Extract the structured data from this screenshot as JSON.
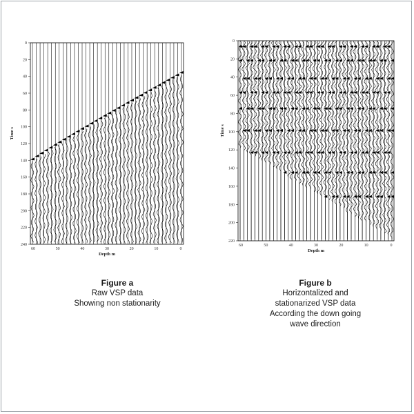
{
  "figure_a": {
    "title": "Figure a",
    "caption_lines": [
      "Raw VSP data",
      "Showing non stationarity"
    ],
    "y_axis_label": "Time s",
    "x_axis_label": "Depth m",
    "y_ticks": [
      "0",
      "20",
      "40",
      "60",
      "80",
      "100",
      "120",
      "140",
      "160",
      "180",
      "200",
      "220",
      "240"
    ],
    "x_ticks": [
      "60",
      "50",
      "40",
      "30",
      "20",
      "10",
      "0"
    ]
  },
  "figure_b": {
    "title": "Figure b",
    "caption_lines": [
      "Horizontalized and",
      "stationarized   VSP data",
      "According the down going",
      "wave direction"
    ],
    "y_axis_label": "Time s",
    "x_axis_label": "Depth m",
    "y_ticks": [
      "0",
      "20",
      "40",
      "60",
      "80",
      "100",
      "120",
      "140",
      "160",
      "180",
      "200",
      "220"
    ],
    "x_ticks": [
      "60",
      "50",
      "40",
      "30",
      "20",
      "10",
      "0"
    ]
  },
  "colors": {
    "trace": "#000000",
    "frame": "#9aa0a6",
    "text": "#1a1a1a"
  }
}
